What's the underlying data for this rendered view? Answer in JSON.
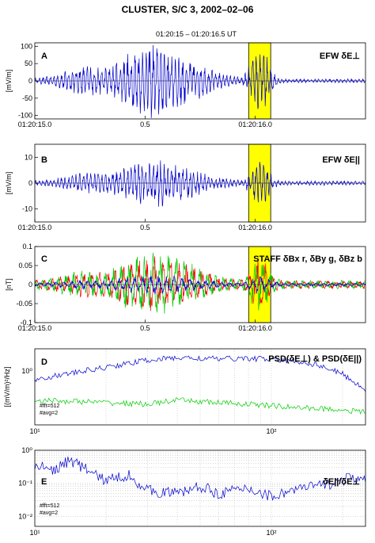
{
  "figure": {
    "title": "CLUSTER, S/C 3, 2002–02–06",
    "subtitle": "01:20:15 – 01:20:16.5 UT"
  },
  "chart_data": [
    {
      "panel": "A",
      "type": "line",
      "ylabel": "[mV/m]",
      "annotation": "EFW δE⊥",
      "ylim": [
        -110,
        110
      ],
      "yticks": [
        100,
        50,
        0,
        -50,
        -100
      ],
      "xticks": [
        "01:20:15.0",
        "0.5",
        "01:20:16.0"
      ],
      "x_range_s": [
        0,
        1.5
      ],
      "highlight_s": [
        0.97,
        1.07
      ],
      "highlight_color": "#ffff00",
      "series": [
        {
          "color": "#0000cc",
          "envelope": {
            "peak_amplitude": 100,
            "baseline": 5
          }
        }
      ]
    },
    {
      "panel": "B",
      "type": "line",
      "ylabel": "[mV/m]",
      "annotation": "EFW δE||",
      "ylim": [
        -15,
        15
      ],
      "yticks": [
        10,
        0,
        -10
      ],
      "xticks": [
        "01:20:15.0",
        "0.5",
        "01:20:16.0"
      ],
      "x_range_s": [
        0,
        1.5
      ],
      "highlight_s": [
        0.97,
        1.07
      ],
      "highlight_color": "#ffff00",
      "series": [
        {
          "color": "#0000cc",
          "envelope": {
            "peak_amplitude": 8,
            "baseline": 0.8
          }
        }
      ]
    },
    {
      "panel": "C",
      "type": "line",
      "ylabel": "[nT]",
      "annotation": "STAFF δBx r, δBy g, δBz b",
      "ylim": [
        -0.1,
        0.1
      ],
      "yticks": [
        "0.1",
        "0.05",
        "0",
        "-0.05",
        "-0.1"
      ],
      "xticks": [
        "01:20:15.0",
        "0.5",
        "01:20:16.0"
      ],
      "x_range_s": [
        0,
        1.5
      ],
      "highlight_s": [
        0.97,
        1.07
      ],
      "highlight_color": "#ffff00",
      "series": [
        {
          "color": "#ff0000",
          "envelope": {
            "peak_amplitude": 0.06,
            "baseline": 0.01
          }
        },
        {
          "color": "#00cc00",
          "envelope": {
            "peak_amplitude": 0.07,
            "baseline": 0.01
          }
        },
        {
          "color": "#0000cc",
          "envelope": {
            "peak_amplitude": 0.02,
            "baseline": 0.004
          }
        }
      ]
    },
    {
      "panel": "D",
      "type": "line",
      "xscale": "log",
      "xlim": [
        10,
        250
      ],
      "ylabel": "[(mV/m)²/Hz]",
      "annotation": "PSD(δE⊥) & PSD(δE||)",
      "ytick_label": "10⁰",
      "xticks": [
        "10¹",
        "10²"
      ],
      "notes": [
        "#fft=512",
        "#avg=2"
      ],
      "series": [
        {
          "color": "#0000cc",
          "points": [
            [
              10,
              0.55
            ],
            [
              15,
              0.9
            ],
            [
              20,
              1.3
            ],
            [
              30,
              2.2
            ],
            [
              40,
              2.6
            ],
            [
              60,
              2.4
            ],
            [
              80,
              2.5
            ],
            [
              100,
              2.3
            ],
            [
              130,
              2.0
            ],
            [
              160,
              1.5
            ],
            [
              200,
              0.8
            ],
            [
              250,
              0.25
            ]
          ]
        },
        {
          "color": "#00cc00",
          "points": [
            [
              10,
              0.12
            ],
            [
              15,
              0.11
            ],
            [
              20,
              0.1
            ],
            [
              30,
              0.09
            ],
            [
              40,
              0.12
            ],
            [
              60,
              0.1
            ],
            [
              80,
              0.09
            ],
            [
              100,
              0.08
            ],
            [
              130,
              0.07
            ],
            [
              160,
              0.065
            ],
            [
              200,
              0.06
            ],
            [
              250,
              0.05
            ]
          ]
        }
      ]
    },
    {
      "panel": "E",
      "type": "line",
      "xscale": "log",
      "xlim": [
        10,
        250
      ],
      "yscale": "log",
      "ylim": [
        0.005,
        1
      ],
      "annotation": "δE||/δE⊥",
      "yticks": [
        "10⁰",
        "10⁻¹",
        "10⁻²"
      ],
      "xticks": [
        "10¹",
        "10²"
      ],
      "notes": [
        "#fft=512",
        "#avg=2"
      ],
      "series": [
        {
          "color": "#0000cc",
          "points": [
            [
              10,
              0.35
            ],
            [
              12,
              0.25
            ],
            [
              14,
              0.5
            ],
            [
              16,
              0.3
            ],
            [
              20,
              0.12
            ],
            [
              25,
              0.18
            ],
            [
              30,
              0.06
            ],
            [
              40,
              0.05
            ],
            [
              50,
              0.08
            ],
            [
              60,
              0.05
            ],
            [
              80,
              0.07
            ],
            [
              100,
              0.04
            ],
            [
              120,
              0.06
            ],
            [
              150,
              0.08
            ],
            [
              180,
              0.1
            ],
            [
              220,
              0.15
            ],
            [
              250,
              0.12
            ]
          ]
        }
      ]
    }
  ]
}
